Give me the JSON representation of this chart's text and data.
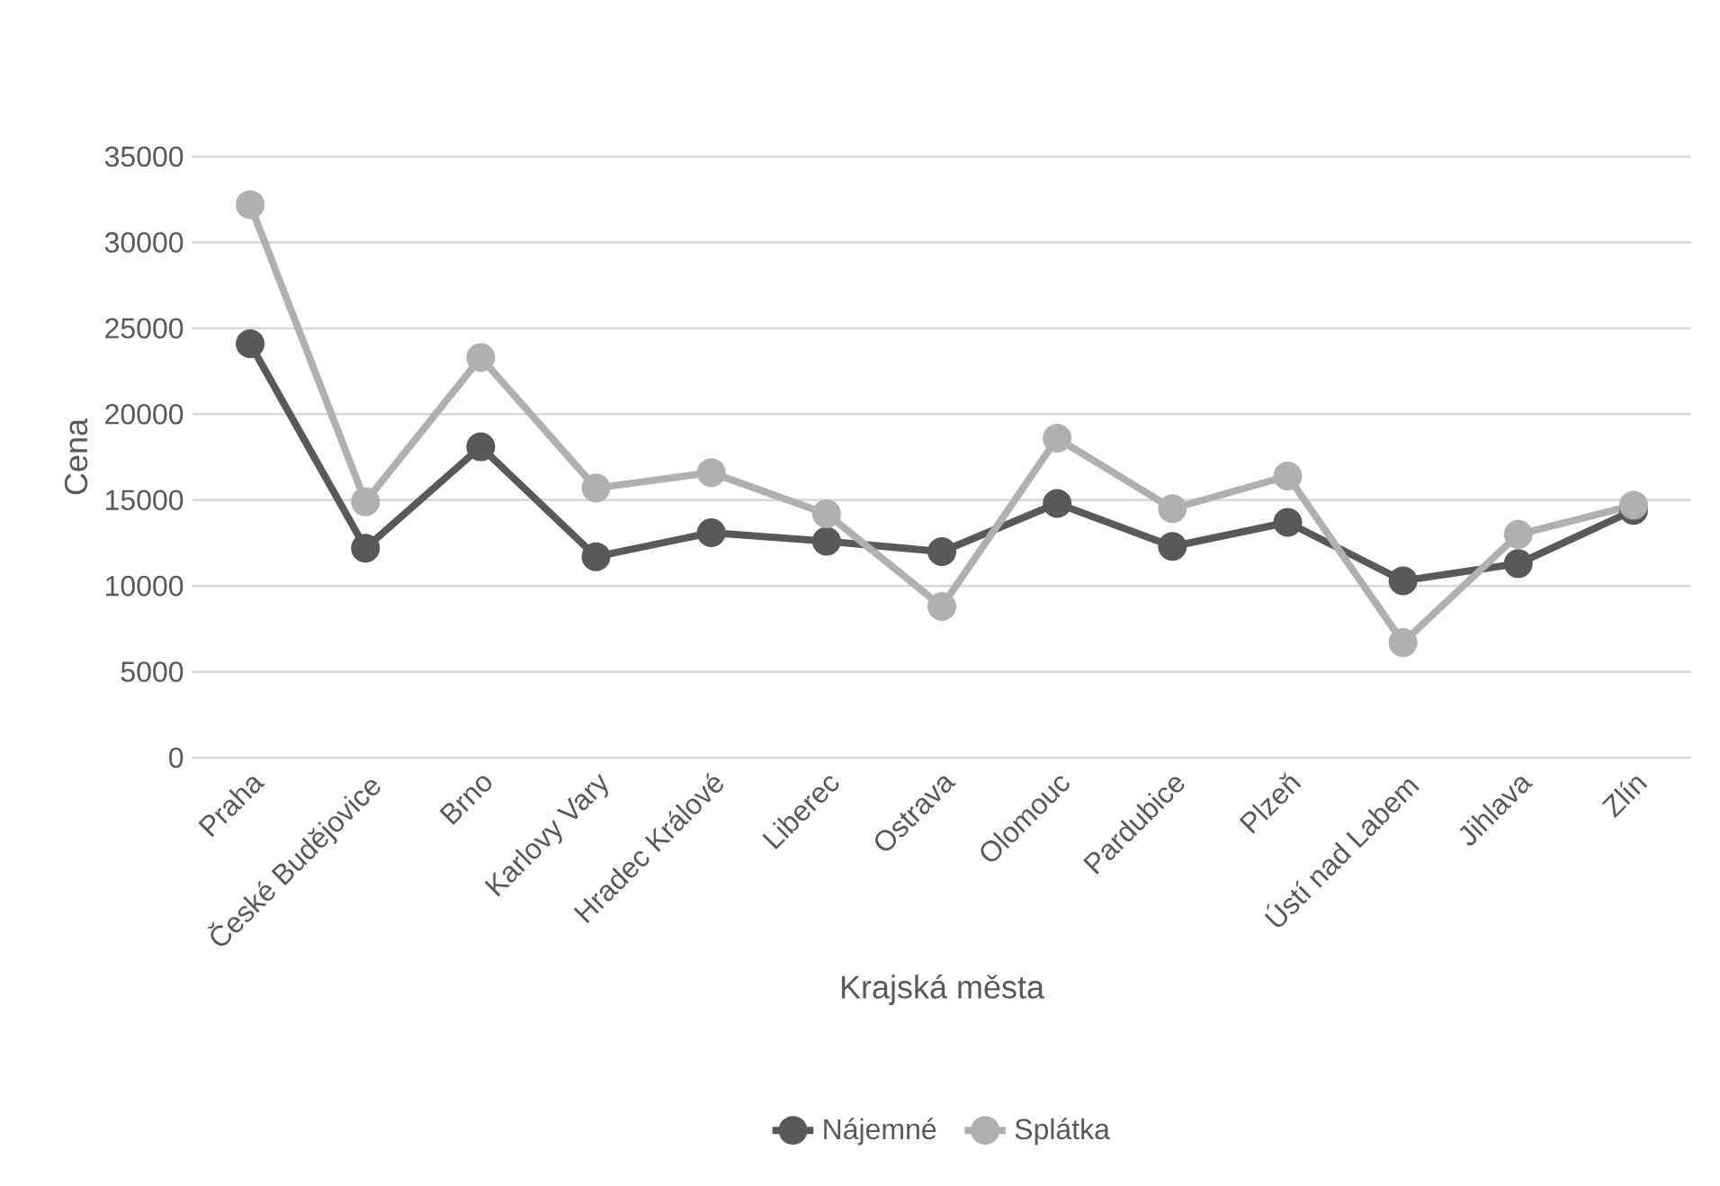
{
  "chart_data": {
    "type": "line",
    "xlabel": "Krajská města",
    "ylabel": "Cena",
    "categories": [
      "Praha",
      "České Budějovice",
      "Brno",
      "Karlovy Vary",
      "Hradec Králové",
      "Liberec",
      "Ostrava",
      "Olomouc",
      "Pardubice",
      "Plzeň",
      "Ústí nad Labem",
      "Jihlava",
      "Zlín"
    ],
    "series": [
      {
        "name": "Nájemné",
        "color": "#595959",
        "values": [
          24100,
          12200,
          18100,
          11700,
          13100,
          12600,
          12000,
          14800,
          12300,
          13700,
          10300,
          11300,
          14400
        ]
      },
      {
        "name": "Splátka",
        "color": "#b0b0b0",
        "values": [
          32200,
          14900,
          23300,
          15700,
          16600,
          14200,
          8800,
          18600,
          14500,
          16400,
          6700,
          13000,
          14700
        ]
      }
    ],
    "ylim": [
      0,
      35000
    ],
    "yticks": [
      0,
      5000,
      10000,
      15000,
      20000,
      25000,
      30000,
      35000
    ],
    "grid": "y",
    "legend": "bottom",
    "marker": "circle",
    "line_style": "solid"
  }
}
